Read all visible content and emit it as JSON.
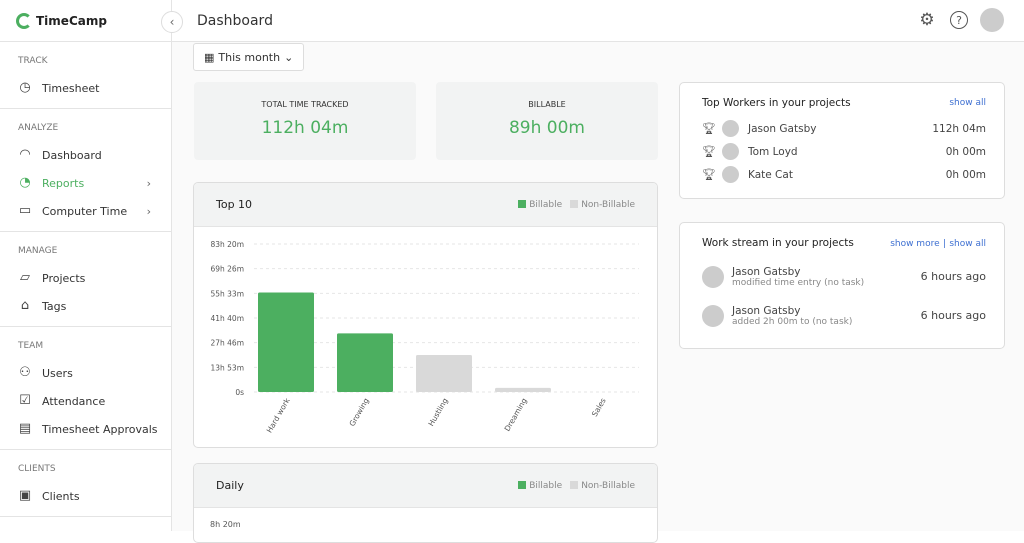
{
  "app": {
    "name": "TimeCamp"
  },
  "sidebar": {
    "sections": [
      {
        "title": "TRACK",
        "items": [
          {
            "label": "Timesheet",
            "icon": "clock-icon"
          }
        ]
      },
      {
        "title": "ANALYZE",
        "items": [
          {
            "label": "Dashboard",
            "icon": "gauge-icon"
          },
          {
            "label": "Reports",
            "icon": "pie-chart-icon",
            "active": true,
            "chevron": true
          },
          {
            "label": "Computer Time",
            "icon": "monitor-icon",
            "chevron": true
          }
        ]
      },
      {
        "title": "MANAGE",
        "items": [
          {
            "label": "Projects",
            "icon": "folder-icon"
          },
          {
            "label": "Tags",
            "icon": "tag-icon"
          }
        ]
      },
      {
        "title": "TEAM",
        "items": [
          {
            "label": "Users",
            "icon": "users-icon"
          },
          {
            "label": "Attendance",
            "icon": "checkbox-icon"
          },
          {
            "label": "Timesheet Approvals",
            "icon": "clipboard-icon"
          }
        ]
      },
      {
        "title": "CLIENTS",
        "items": [
          {
            "label": "Clients",
            "icon": "briefcase-icon"
          }
        ]
      }
    ]
  },
  "header": {
    "title": "Dashboard"
  },
  "filter": {
    "label": "This month"
  },
  "stats": [
    {
      "label": "TOTAL TIME TRACKED",
      "value": "112h 04m"
    },
    {
      "label": "BILLABLE",
      "value": "89h 00m"
    }
  ],
  "colors": {
    "accent": "#4caf60",
    "billable": "#4caf60",
    "non_billable": "#d9d9d9",
    "link": "#3d6fd1"
  },
  "legend": {
    "billable": "Billable",
    "non_billable": "Non-Billable"
  },
  "chart_data": [
    {
      "type": "bar",
      "title": "Top 10",
      "categories": [
        "Hard work",
        "Growing",
        "Hustling",
        "Dreaming",
        "Sales"
      ],
      "values_hours": [
        56,
        33,
        20.8,
        2.3,
        0
      ],
      "billable": [
        true,
        true,
        false,
        false,
        false
      ],
      "y_ticks": [
        "0s",
        "13h 53m",
        "27h 46m",
        "41h 40m",
        "55h 33m",
        "69h 26m",
        "83h 20m"
      ],
      "ylim_hours": [
        0,
        83.33
      ],
      "grid": true,
      "legend": "top-right"
    },
    {
      "type": "bar",
      "title": "Daily",
      "y_ticks": [
        "8h 20m"
      ],
      "legend": "top-right"
    }
  ],
  "top_workers": {
    "title": "Top Workers in your projects",
    "show_all": "show all",
    "rows": [
      {
        "name": "Jason Gatsby",
        "time": "112h 04m"
      },
      {
        "name": "Tom Loyd",
        "time": "0h 00m"
      },
      {
        "name": "Kate Cat",
        "time": "0h 00m"
      }
    ]
  },
  "work_stream": {
    "title": "Work stream in your projects",
    "show_more": "show more",
    "sep": "|",
    "show_all": "show all",
    "rows": [
      {
        "name": "Jason Gatsby",
        "desc": "modified time entry (no task)",
        "time": "6 hours ago"
      },
      {
        "name": "Jason Gatsby",
        "desc": "added 2h 00m to (no task)",
        "time": "6 hours ago"
      }
    ]
  }
}
